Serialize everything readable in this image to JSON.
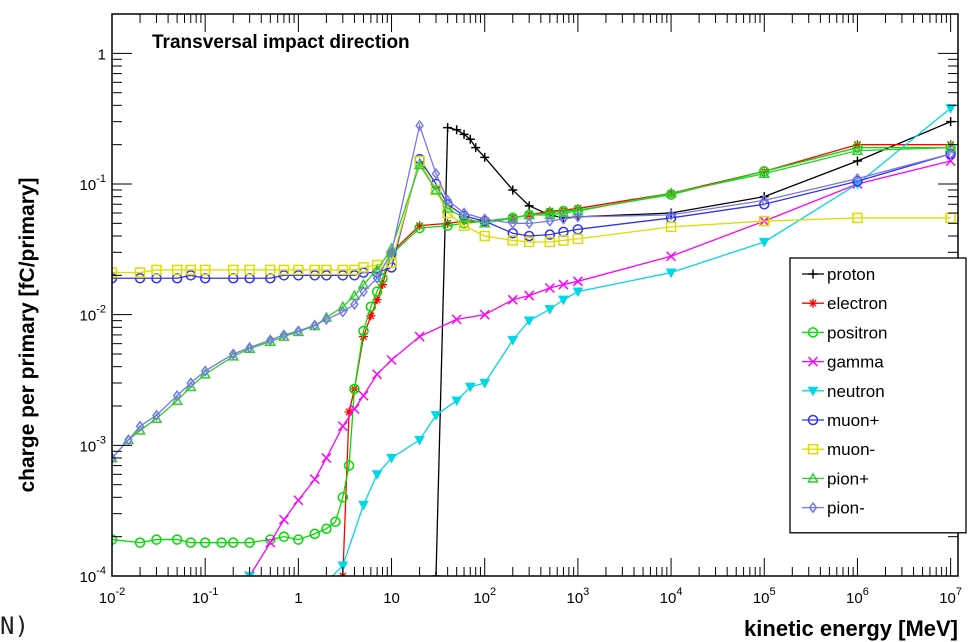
{
  "corner_text": "N)",
  "chart_data": {
    "type": "line",
    "title": "Transversal impact direction",
    "xlabel": "kinetic energy [MeV]",
    "ylabel": "charge per primary [fC/primary]",
    "xscale": "log",
    "yscale": "log",
    "xlim": [
      0.01,
      12000000
    ],
    "ylim": [
      0.0001,
      2
    ],
    "x_ticks": [
      {
        "value": 0.01,
        "label": "10-2"
      },
      {
        "value": 0.1,
        "label": "10-1"
      },
      {
        "value": 1,
        "label": "1"
      },
      {
        "value": 10,
        "label": "10"
      },
      {
        "value": 100,
        "label": "102"
      },
      {
        "value": 1000,
        "label": "103"
      },
      {
        "value": 10000,
        "label": "104"
      },
      {
        "value": 100000,
        "label": "105"
      },
      {
        "value": 1000000,
        "label": "106"
      },
      {
        "value": 10000000,
        "label": "107"
      }
    ],
    "y_ticks": [
      {
        "value": 0.0001,
        "label": "10-4"
      },
      {
        "value": 0.001,
        "label": "10-3"
      },
      {
        "value": 0.01,
        "label": "10-2"
      },
      {
        "value": 0.1,
        "label": "10-1"
      },
      {
        "value": 1,
        "label": "1"
      }
    ],
    "grid": false,
    "legend_position": "bottom-right",
    "series": [
      {
        "name": "proton",
        "color": "#000000",
        "marker": "plus",
        "x": [
          30,
          40,
          50,
          60,
          70,
          80,
          100,
          200,
          300,
          500,
          700,
          1000,
          10000,
          100000,
          1000000,
          10000000
        ],
        "y": [
          0.0001,
          0.27,
          0.26,
          0.24,
          0.22,
          0.19,
          0.16,
          0.09,
          0.068,
          0.058,
          0.055,
          0.056,
          0.06,
          0.08,
          0.15,
          0.3
        ]
      },
      {
        "name": "electron",
        "color": "#ff0000",
        "marker": "star",
        "x": [
          3,
          3.5,
          4,
          5,
          6,
          7,
          8,
          10,
          20,
          40,
          60,
          100,
          200,
          300,
          500,
          700,
          1000,
          10000,
          100000,
          1000000,
          10000000
        ],
        "y": [
          0.0001,
          0.0018,
          0.0027,
          0.0068,
          0.0098,
          0.013,
          0.017,
          0.03,
          0.048,
          0.05,
          0.052,
          0.052,
          0.055,
          0.058,
          0.062,
          0.063,
          0.065,
          0.085,
          0.125,
          0.2,
          0.2
        ]
      },
      {
        "name": "positron",
        "color": "#00dd00",
        "marker": "circle",
        "x": [
          0.01,
          0.02,
          0.03,
          0.05,
          0.07,
          0.1,
          0.15,
          0.2,
          0.3,
          0.5,
          0.7,
          1,
          1.5,
          2,
          2.5,
          3,
          3.5,
          4,
          5,
          6,
          7,
          8,
          10,
          20,
          40,
          60,
          100,
          200,
          300,
          500,
          700,
          1000,
          10000,
          100000,
          1000000,
          10000000
        ],
        "y": [
          0.00019,
          0.00018,
          0.00019,
          0.00019,
          0.00018,
          0.00018,
          0.00018,
          0.00018,
          0.00018,
          0.00019,
          0.0002,
          0.00019,
          0.00021,
          0.00023,
          0.00026,
          0.0004,
          0.0007,
          0.0027,
          0.0075,
          0.0115,
          0.015,
          0.019,
          0.029,
          0.046,
          0.048,
          0.05,
          0.052,
          0.055,
          0.058,
          0.06,
          0.062,
          0.063,
          0.083,
          0.125,
          0.19,
          0.19
        ]
      },
      {
        "name": "gamma",
        "color": "#ff00ff",
        "marker": "x",
        "x": [
          0.3,
          0.5,
          0.7,
          1,
          1.5,
          2,
          3,
          4,
          5,
          7,
          10,
          20,
          50,
          100,
          200,
          300,
          500,
          700,
          1000,
          10000,
          100000,
          1000000,
          10000000
        ],
        "y": [
          0.0001,
          0.00018,
          0.00027,
          0.00038,
          0.00055,
          0.0008,
          0.0014,
          0.0019,
          0.0024,
          0.0035,
          0.0045,
          0.0068,
          0.0092,
          0.01,
          0.013,
          0.014,
          0.016,
          0.017,
          0.018,
          0.028,
          0.052,
          0.1,
          0.15
        ]
      },
      {
        "name": "neutron",
        "color": "#00d8e8",
        "marker": "triangle-down",
        "x": [
          0.3,
          1,
          2,
          3,
          5,
          7,
          10,
          20,
          30,
          50,
          70,
          100,
          200,
          300,
          500,
          700,
          1000,
          10000,
          100000,
          1000000,
          10000000
        ],
        "y": [
          0.0001,
          9e-05,
          9e-05,
          0.00012,
          0.00035,
          0.0006,
          0.0008,
          0.0011,
          0.0017,
          0.0022,
          0.0028,
          0.003,
          0.0064,
          0.009,
          0.011,
          0.013,
          0.015,
          0.021,
          0.036,
          0.1,
          0.38
        ]
      },
      {
        "name": "muon+",
        "color": "#3333ee",
        "marker": "circle",
        "x": [
          0.01,
          0.02,
          0.03,
          0.05,
          0.07,
          0.1,
          0.2,
          0.3,
          0.5,
          0.7,
          1,
          1.5,
          2,
          3,
          4,
          5,
          7,
          10,
          20,
          30,
          40,
          60,
          100,
          200,
          300,
          500,
          700,
          1000,
          10000,
          100000,
          1000000,
          10000000
        ],
        "y": [
          0.019,
          0.019,
          0.019,
          0.019,
          0.02,
          0.019,
          0.019,
          0.019,
          0.019,
          0.02,
          0.02,
          0.02,
          0.02,
          0.02,
          0.02,
          0.021,
          0.021,
          0.023,
          0.155,
          0.1,
          0.07,
          0.057,
          0.052,
          0.042,
          0.04,
          0.041,
          0.043,
          0.045,
          0.055,
          0.07,
          0.105,
          0.17
        ]
      },
      {
        "name": "muon-",
        "color": "#dddd00",
        "marker": "square",
        "x": [
          0.01,
          0.02,
          0.03,
          0.05,
          0.07,
          0.1,
          0.2,
          0.3,
          0.5,
          0.7,
          1,
          1.5,
          2,
          3,
          4,
          5,
          7,
          10,
          20,
          30,
          40,
          60,
          100,
          200,
          300,
          500,
          700,
          1000,
          10000,
          100000,
          1000000,
          10000000
        ],
        "y": [
          0.021,
          0.021,
          0.022,
          0.022,
          0.022,
          0.022,
          0.022,
          0.022,
          0.022,
          0.022,
          0.022,
          0.022,
          0.022,
          0.022,
          0.022,
          0.023,
          0.024,
          0.025,
          0.15,
          0.09,
          0.06,
          0.048,
          0.04,
          0.037,
          0.036,
          0.036,
          0.037,
          0.038,
          0.047,
          0.052,
          0.055,
          0.055
        ]
      },
      {
        "name": "pion+",
        "color": "#33cc33",
        "marker": "triangle-up",
        "x": [
          0.01,
          0.015,
          0.02,
          0.03,
          0.05,
          0.07,
          0.1,
          0.2,
          0.3,
          0.5,
          0.7,
          1,
          1.5,
          2,
          3,
          4,
          5,
          7,
          10,
          20,
          30,
          40,
          60,
          100,
          200,
          300,
          500,
          700,
          1000,
          10000,
          100000,
          1000000,
          10000000
        ],
        "y": [
          0.0008,
          0.0011,
          0.0013,
          0.0016,
          0.0022,
          0.0028,
          0.0035,
          0.0048,
          0.0055,
          0.0062,
          0.0068,
          0.0074,
          0.0082,
          0.0095,
          0.0115,
          0.014,
          0.017,
          0.022,
          0.032,
          0.14,
          0.09,
          0.065,
          0.055,
          0.05,
          0.055,
          0.058,
          0.058,
          0.06,
          0.062,
          0.085,
          0.12,
          0.18,
          0.19
        ]
      },
      {
        "name": "pion-",
        "color": "#7777ee",
        "marker": "diamond",
        "x": [
          0.01,
          0.015,
          0.02,
          0.03,
          0.05,
          0.07,
          0.1,
          0.2,
          0.3,
          0.5,
          0.7,
          1,
          1.5,
          2,
          3,
          4,
          5,
          7,
          10,
          20,
          30,
          40,
          60,
          100,
          200,
          300,
          500,
          700,
          1000,
          10000,
          100000,
          1000000,
          10000000
        ],
        "y": [
          0.0008,
          0.0011,
          0.0014,
          0.0017,
          0.0024,
          0.003,
          0.0037,
          0.005,
          0.0056,
          0.0064,
          0.007,
          0.0075,
          0.0083,
          0.0092,
          0.0105,
          0.012,
          0.015,
          0.019,
          0.03,
          0.28,
          0.12,
          0.075,
          0.06,
          0.054,
          0.05,
          0.05,
          0.052,
          0.054,
          0.056,
          0.058,
          0.075,
          0.11,
          0.17
        ]
      }
    ]
  }
}
